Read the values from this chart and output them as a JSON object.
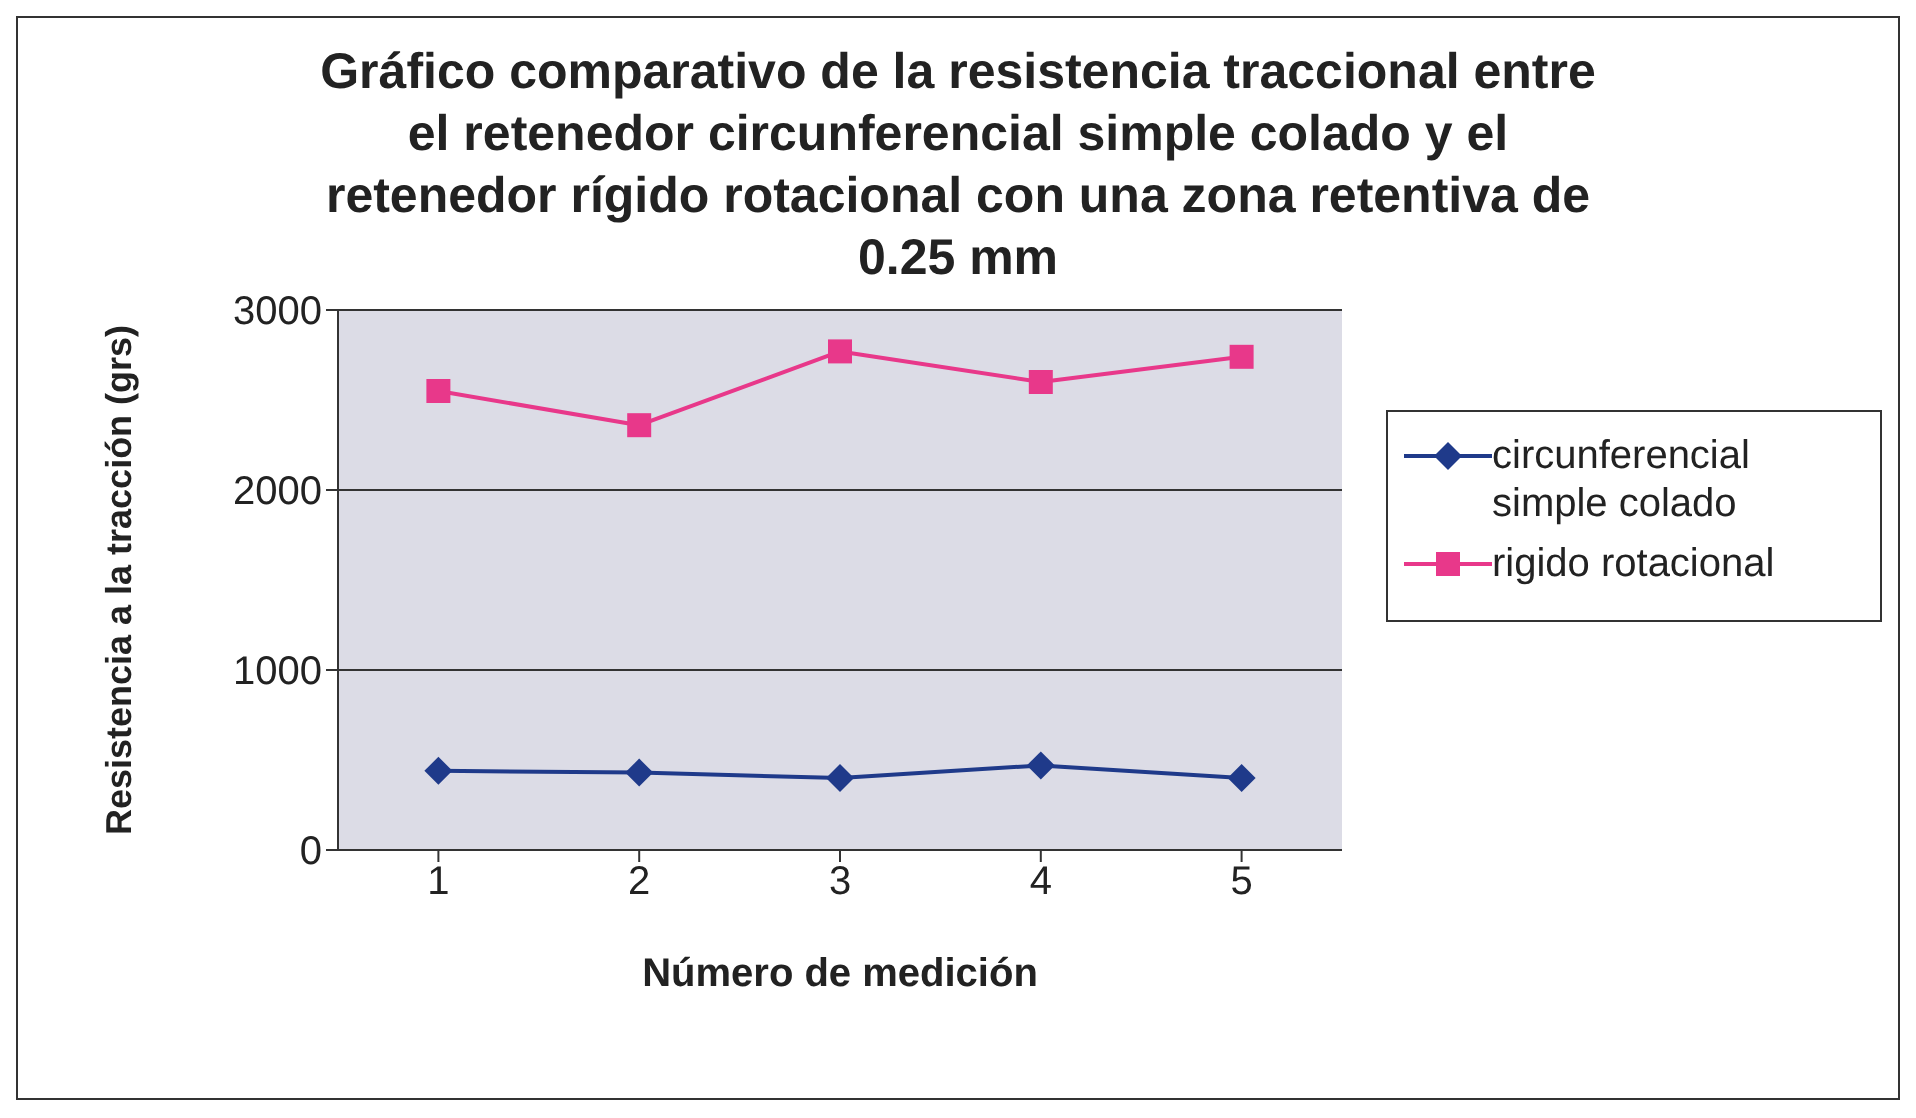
{
  "chart_data": {
    "type": "line",
    "title": "Gráfico comparativo de la resistencia traccional entre el retenedor circunferencial simple colado y el retenedor rígido rotacional con una zona retentiva de 0.25 mm",
    "xlabel": "Número de medición",
    "ylabel": "Resistencia  a la tracción (grs)",
    "categories": [
      "1",
      "2",
      "3",
      "4",
      "5"
    ],
    "series": [
      {
        "name": "circunferencial simple colado",
        "color": "#1f3a8a",
        "marker": "diamond",
        "values": [
          440,
          430,
          400,
          470,
          400
        ]
      },
      {
        "name": "rigido rotacional",
        "color": "#e8388a",
        "marker": "square",
        "values": [
          2550,
          2360,
          2770,
          2600,
          2740
        ]
      }
    ],
    "ylim": [
      0,
      3000
    ],
    "yticks": [
      0,
      1000,
      2000,
      3000
    ],
    "grid": "y",
    "legend": "right"
  }
}
